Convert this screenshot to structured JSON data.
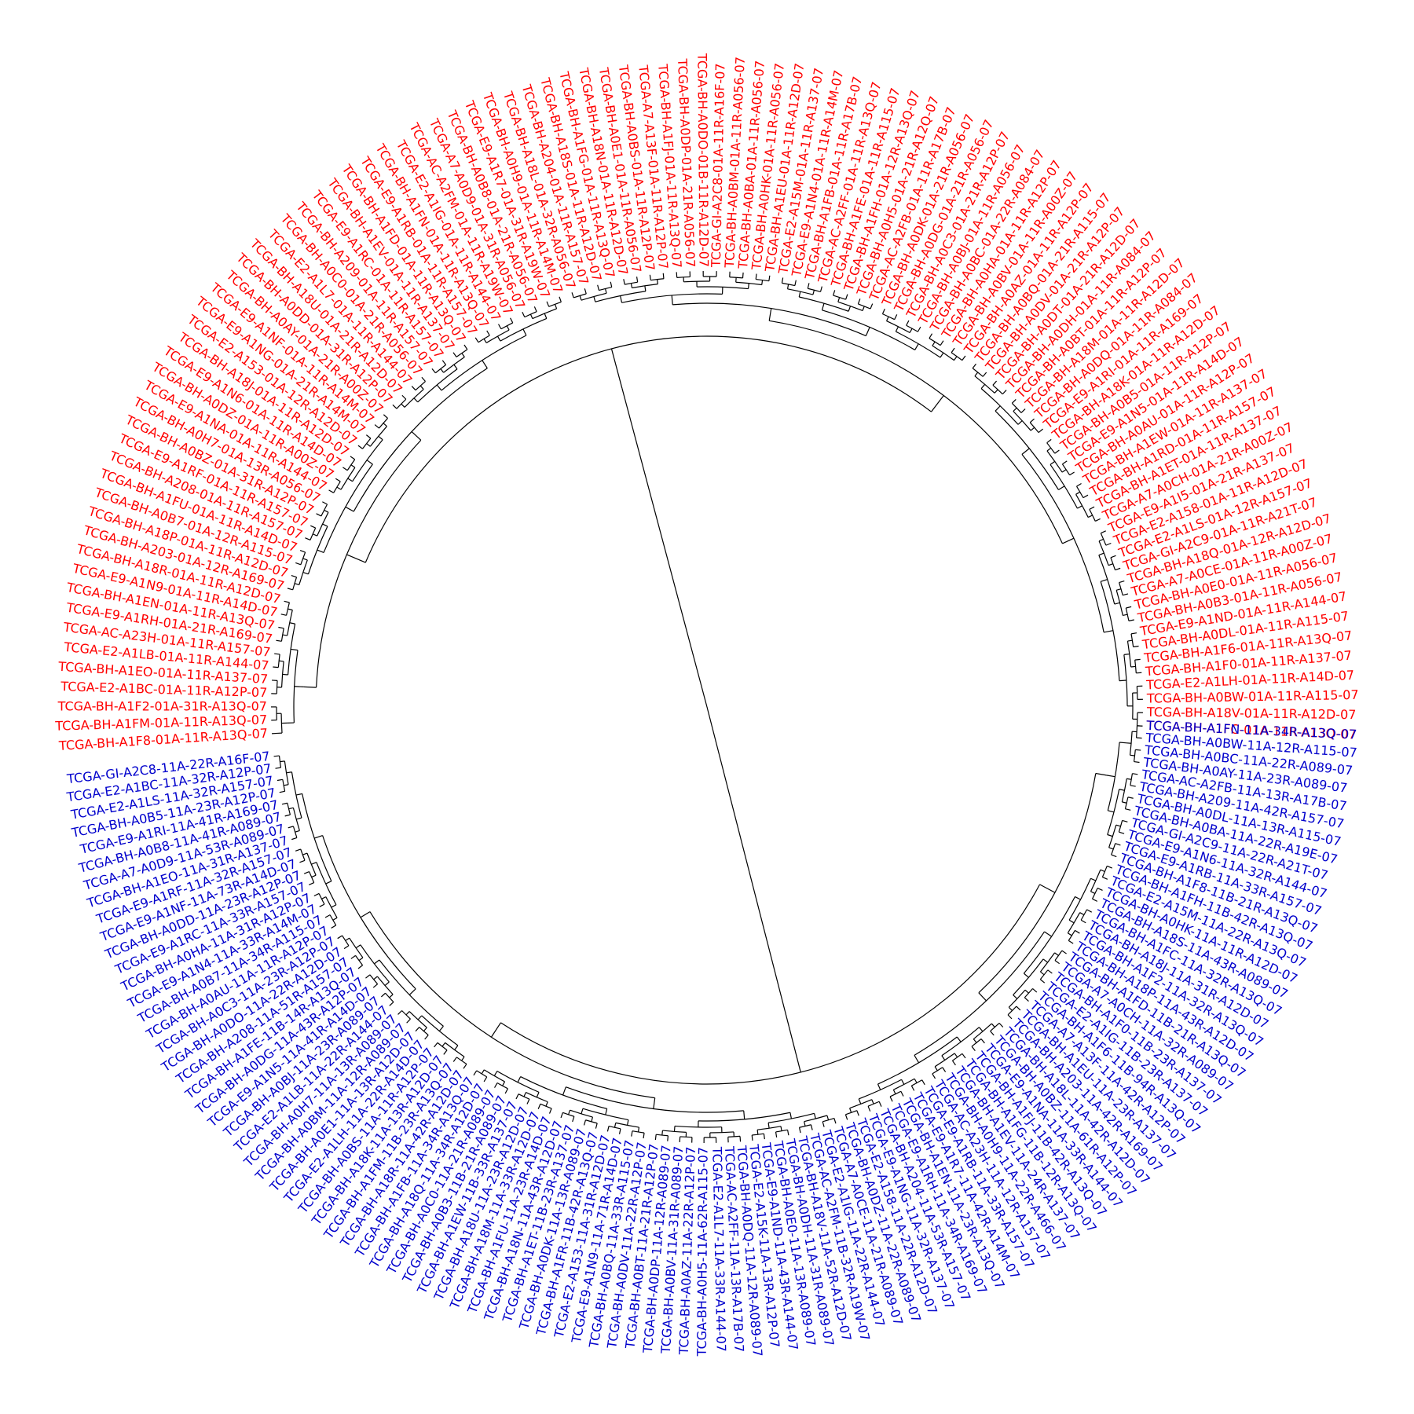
{
  "colors": {
    "tumor": "#ff0000",
    "normal": "#0000cc",
    "branch": "#000000"
  },
  "tumor_leaves": [
    "TCGA-BH-A1FC-01A-11R-A13Q-07",
    "TCGA-BH-A18V-01A-11R-A12D-07",
    "TCGA-BH-A0BW-01A-11R-A115-07",
    "TCGA-E2-A1LH-01A-11R-A14D-07",
    "TCGA-BH-A1F0-01A-11R-A137-07",
    "TCGA-BH-A1F6-01A-11R-A13Q-07",
    "TCGA-BH-A0DL-01A-11R-A115-07",
    "TCGA-E9-A1ND-01A-11R-A144-07",
    "TCGA-BH-A0B3-01A-11R-A056-07",
    "TCGA-BH-A0E0-01A-11R-A056-07",
    "TCGA-A7-A0CE-01A-11R-A00Z-07",
    "TCGA-BH-A18Q-01A-12R-A12D-07",
    "TCGA-GI-A2C9-01A-11R-A21T-07",
    "TCGA-E2-A1LS-01A-12R-A157-07",
    "TCGA-E2-A158-01A-11R-A12D-07",
    "TCGA-E9-A1I5-01A-21R-A137-07",
    "TCGA-A7-A0CH-01A-21R-A00Z-07",
    "TCGA-BH-A1ET-01A-11R-A137-07",
    "TCGA-BH-A1RD-01A-11R-A157-07",
    "TCGA-BH-A1EW-01A-11R-A137-07",
    "TCGA-BH-A0AU-01A-11R-A12P-07",
    "TCGA-E9-A1N5-01A-11R-A14D-07",
    "TCGA-BH-A0B5-01A-11R-A12P-07",
    "TCGA-BH-A18K-01A-11R-A12D-07",
    "TCGA-E9-A1RI-01A-11R-A169-07",
    "TCGA-BH-A0DQ-01A-11R-A084-07",
    "TCGA-BH-A18M-01A-11R-A12D-07",
    "TCGA-BH-A0BT-01A-11R-A12P-07",
    "TCGA-BH-A0DH-01A-11R-A084-07",
    "TCGA-BH-A0DT-01A-21R-A12D-07",
    "TCGA-BH-A0DV-01A-21R-A12P-07",
    "TCGA-BH-A0BQ-01A-21R-A115-07",
    "TCGA-BH-A0AZ-01A-11R-A12P-07",
    "TCGA-BH-A0BV-01A-11R-A00Z-07",
    "TCGA-BH-A0HA-01A-11R-A12P-07",
    "TCGA-BH-A0BC-01A-22R-A084-07",
    "TCGA-BH-A0BJ-01A-11R-A056-07",
    "TCGA-BH-A0C3-01A-21R-A12P-07",
    "TCGA-BH-A0DG-01A-21R-A056-07",
    "TCGA-BH-A0DK-01A-21R-A056-07",
    "TCGA-AC-A2FB-01A-11R-A17B-07",
    "TCGA-BH-A0H5-01A-21R-A12Q-07",
    "TCGA-BH-A1FH-01A-12R-A13Q-07",
    "TCGA-BH-A1FE-01A-11R-A115-07",
    "TCGA-AC-A2FF-01A-11R-A13Q-07",
    "TCGA-BH-A1FB-01A-11R-A17B-07",
    "TCGA-E9-A1N4-01A-11R-A14M-07",
    "TCGA-E2-A15M-01A-11R-A137-07",
    "TCGA-BH-A1EU-01A-11R-A12D-07",
    "TCGA-BH-A0HK-01A-11R-A056-07",
    "TCGA-BH-A0BA-01A-11R-A056-07",
    "TCGA-BH-A0BM-01A-11R-A056-07",
    "TCGA-GI-A2C8-01A-11R-A16F-07",
    "TCGA-BH-A0DO-01B-11R-A12D-07",
    "TCGA-BH-A0DP-01A-21R-A056-07",
    "TCGA-BH-A1FJ-01A-11R-A13Q-07",
    "TCGA-A7-A13F-01A-11R-A12P-07",
    "TCGA-BH-A0BS-01A-11R-A12P-07",
    "TCGA-BH-A0E1-01A-11R-A056-07",
    "TCGA-BH-A18N-01A-11R-A12D-07",
    "TCGA-BH-A1FG-01A-11R-A13Q-07",
    "TCGA-BH-A18S-01A-11R-A12D-07",
    "TCGA-BH-A204-01A-11R-A157-07",
    "TCGA-BH-A18L-01A-32R-A056-07",
    "TCGA-BH-A0H9-01A-11R-A14M-07",
    "TCGA-E9-A1R7-01A-31R-A19W-07",
    "TCGA-BH-A0B8-01A-21R-A056-07",
    "TCGA-A7-A0D9-01A-31R-A056-07",
    "TCGA-AC-A2FM-01A-11R-A19W-07",
    "TCGA-E2-A1IG-01A-11R-A144-07",
    "TCGA-BH-A1FN-01A-11R-A13Q-07",
    "TCGA-E9-A1RB-01A-11R-A157-07",
    "TCGA-BH-A1FD-01A-11R-A13Q-07",
    "TCGA-BH-A1EV-01A-11R-A137-07",
    "TCGA-E9-A1RC-01A-11R-A157-07",
    "TCGA-BH-A209-01A-11R-A157-07",
    "TCGA-BH-A0C0-01A-21R-A056-07",
    "TCGA-E2-A1L7-01A-11R-A144-07",
    "TCGA-BH-A18U-01A-21R-A12D-07",
    "TCGA-BH-A0DD-01A-31R-A12P-07",
    "TCGA-BH-A0AY-01A-21R-A00Z-07",
    "TCGA-E9-A1NF-01A-11R-A14M-07",
    "TCGA-E9-A1NG-01A-21R-A14M-07",
    "TCGA-E2-A153-01A-12R-A12D-07",
    "TCGA-BH-A18J-01A-11R-A12D-07",
    "TCGA-E9-A1N6-01A-11R-A14D-07",
    "TCGA-BH-A0DZ-01A-11R-A00Z-07",
    "TCGA-E9-A1NA-01A-11R-A144-07",
    "TCGA-BH-A0H7-01A-13R-A056-07",
    "TCGA-BH-A0BZ-01A-31R-A12P-07",
    "TCGA-E9-A1RF-01A-11R-A157-07",
    "TCGA-BH-A208-01A-11R-A157-07",
    "TCGA-BH-A1FU-01A-11R-A14D-07",
    "TCGA-BH-A0B7-01A-12R-A115-07",
    "TCGA-BH-A18P-01A-11R-A12D-07",
    "TCGA-BH-A203-01A-12R-A169-07",
    "TCGA-BH-A18R-01A-11R-A12D-07",
    "TCGA-E9-A1N9-01A-11R-A14D-07",
    "TCGA-BH-A1EN-01A-11R-A13Q-07",
    "TCGA-E9-A1RH-01A-21R-A169-07",
    "TCGA-AC-A23H-01A-11R-A157-07",
    "TCGA-E2-A1LB-01A-11R-A144-07",
    "TCGA-BH-A1EO-01A-11R-A137-07",
    "TCGA-E2-A1BC-01A-11R-A12P-07",
    "TCGA-BH-A1F2-01A-31R-A13Q-07",
    "TCGA-BH-A1FM-01A-11R-A13Q-07",
    "TCGA-BH-A1F8-01A-11R-A13Q-07"
  ],
  "normal_leaves": [
    "TCGA-GI-A2C8-11A-22R-A16F-07",
    "TCGA-E2-A1BC-11A-32R-A12P-07",
    "TCGA-E2-A1LS-11A-32R-A157-07",
    "TCGA-BH-A0B5-11A-23R-A12P-07",
    "TCGA-E9-A1RI-11A-41R-A169-07",
    "TCGA-BH-A0B8-11A-41R-A089-07",
    "TCGA-A7-A0D9-11A-53R-A089-07",
    "TCGA-BH-A1EO-11A-31R-A137-07",
    "TCGA-E9-A1RF-11A-32R-A157-07",
    "TCGA-E9-A1NF-11A-73R-A14D-07",
    "TCGA-BH-A0DD-11A-23R-A12P-07",
    "TCGA-E9-A1RC-11A-33R-A157-07",
    "TCGA-BH-A0HA-11A-31R-A12P-07",
    "TCGA-E9-A1N4-11A-33R-A14M-07",
    "TCGA-BH-A0B7-11A-34R-A115-07",
    "TCGA-BH-A0AU-11A-11R-A12P-07",
    "TCGA-BH-A0C3-11A-23R-A12P-07",
    "TCGA-BH-A0DO-11A-22R-A12D-07",
    "TCGA-BH-A208-11A-51R-A157-07",
    "TCGA-BH-A1FE-11B-14R-A13Q-07",
    "TCGA-BH-A0DG-11A-43R-A12P-07",
    "TCGA-E9-A1N5-11A-41R-A14D-07",
    "TCGA-BH-A0BJ-11A-23R-A089-07",
    "TCGA-E2-A1LB-11A-22R-A144-07",
    "TCGA-BH-A0H7-11A-13R-A089-07",
    "TCGA-BH-A0BM-11A-12R-A089-07",
    "TCGA-BH-A0E1-11A-13R-A12D-07",
    "TCGA-E2-A1LH-11A-22R-A14D-07",
    "TCGA-BH-A0BS-11A-11R-A12P-07",
    "TCGA-BH-A18K-11A-13R-A12D-07",
    "TCGA-BH-A1FM-11B-23R-A13Q-07",
    "TCGA-BH-A18R-11A-42R-A12D-07",
    "TCGA-BH-A1FB-11A-34R-A13Q-07",
    "TCGA-BH-A18Q-11A-34R-A12D-07",
    "TCGA-BH-A0C0-11A-21R-A089-07",
    "TCGA-BH-A0B3-11B-21R-A089-07",
    "TCGA-BH-A1EW-11B-33R-A137-07",
    "TCGA-BH-A18U-11A-23R-A12D-07",
    "TCGA-BH-A18M-11A-33R-A12D-07",
    "TCGA-BH-A1FU-11A-23R-A14D-07",
    "TCGA-BH-A18N-11A-43R-A12D-07",
    "TCGA-BH-A1ET-11B-23R-A137-07",
    "TCGA-BH-A0DK-11A-13R-A089-07",
    "TCGA-BH-A1FR-11B-42R-A13Q-07",
    "TCGA-E2-A153-11A-31R-A12D-07",
    "TCGA-E9-A1N9-11A-71R-A14D-07",
    "TCGA-BH-A0BQ-11A-33R-A115-07",
    "TCGA-BH-A0DV-11A-22R-A12P-07",
    "TCGA-BH-A0BT-11A-21R-A12P-07",
    "TCGA-BH-A0DP-11A-12R-A089-07",
    "TCGA-BH-A0BV-11A-31R-A089-07",
    "TCGA-BH-A0AZ-11A-22R-A12P-07",
    "TCGA-BH-A0H5-11A-62R-A115-07",
    "TCGA-E2-A1L7-11A-33R-A144-07",
    "TCGA-AC-A2FF-11A-13R-A17B-07",
    "TCGA-BH-A0DQ-11A-12R-A089-07",
    "TCGA-E2-A15K-11A-13R-A12P-07",
    "TCGA-E9-A1ND-11A-43R-A144-07",
    "TCGA-BH-A0E0-11A-13R-A089-07",
    "TCGA-BH-A0DH-11A-31R-A089-07",
    "TCGA-BH-A18V-11A-52R-A12D-07",
    "TCGA-AC-A2FM-11B-32R-A19W-07",
    "TCGA-E2-A1IG-11A-22R-A144-07",
    "TCGA-A7-A0CE-11A-21R-A089-07",
    "TCGA-BH-A0DZ-11A-22R-A089-07",
    "TCGA-E2-A158-11A-22R-A12D-07",
    "TCGA-E9-A1NG-11A-32R-A137-07",
    "TCGA-BH-A204-11A-53R-A157-07",
    "TCGA-E9-A1RH-11A-34R-A169-07",
    "TCGA-BH-A1EN-11A-23R-A13Q-07",
    "TCGA-E9-A1R7-11A-42R-A14M-07",
    "TCGA-E9-A1RB-11A-33R-A157-07",
    "TCGA-AC-A23H-11A-12R-A157-07",
    "TCGA-BH-A0H9-11A-22R-A466-07",
    "TCGA-BH-A1EV-11A-24R-A137-07",
    "TCGA-BH-A1FG-11B-12R-A13Q-07",
    "TCGA-BH-A1FJ-11B-42R-A13Q-07",
    "TCGA-E9-A1NA-11A-33R-A144-07",
    "TCGA-BH-A0BZ-11A-61R-A12P-07",
    "TCGA-BH-A18L-11A-42R-A12D-07",
    "TCGA-BH-A203-11A-42R-A169-07",
    "TCGA-BH-A1EU-11A-23R-A137-07",
    "TCGA-A7-A13F-11A-42R-A12P-07",
    "TCGA-BH-A1F6-11B-94R-A13Q-07",
    "TCGA-E2-A1IG-11B-23R-A137-07",
    "TCGA-BH-A1F0-11B-23R-A137-07",
    "TCGA-A7-A0CH-11A-32R-A089-07",
    "TCGA-BH-A1FD-11B-21R-A13Q-07",
    "TCGA-BH-A18P-11A-43R-A12D-07",
    "TCGA-BH-A1F2-11A-32R-A13Q-07",
    "TCGA-BH-A18J-11A-31R-A12D-07",
    "TCGA-BH-A1FC-11A-32R-A13Q-07",
    "TCGA-BH-A18S-11A-43R-A089-07",
    "TCGA-BH-A0HK-11A-11R-A12D-07",
    "TCGA-E2-A15M-11A-22R-A13Q-07",
    "TCGA-BH-A1FH-11B-42R-A13Q-07",
    "TCGA-BH-A1F8-11B-21R-A13Q-07",
    "TCGA-E9-A1RB-11A-33R-A157-07",
    "TCGA-E9-A1N6-11A-32R-A144-07",
    "TCGA-GI-A2C9-11A-22R-A21T-07",
    "TCGA-BH-A0BA-11A-22R-A19E-07",
    "TCGA-BH-A0DL-11A-13R-A115-07",
    "TCGA-BH-A209-11A-42R-A157-07",
    "TCGA-AC-A2FB-11A-13R-A17B-07",
    "TCGA-BH-A0AY-11A-23R-A089-07",
    "TCGA-BH-A0BC-11A-22R-A089-07",
    "TCGA-BH-A0BW-11A-12R-A115-07",
    "TCGA-BH-A1FN-11A-34R-A13Q-07"
  ]
}
